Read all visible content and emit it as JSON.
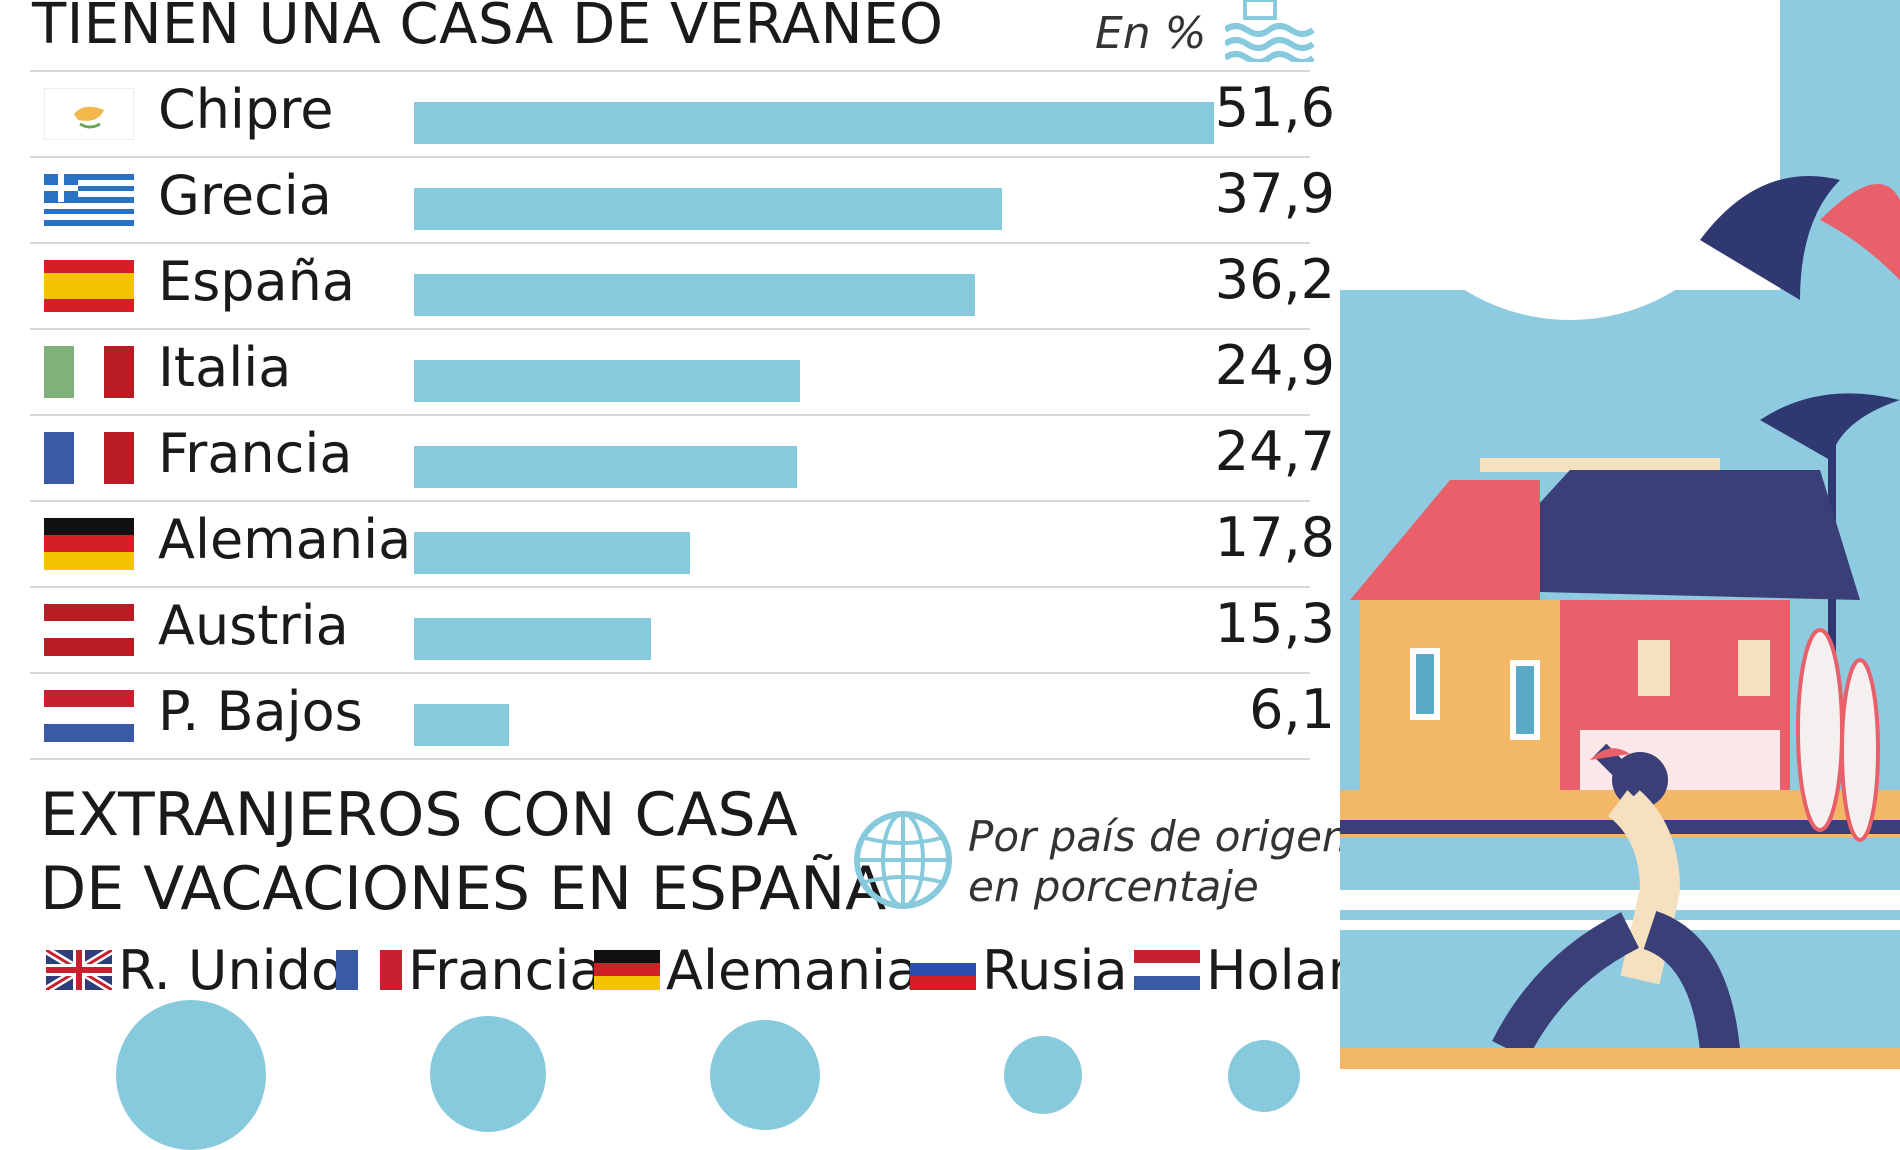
{
  "header": {
    "title": "TIENEN UNA CASA DE VERANEO",
    "unit": "En %"
  },
  "chart_data": [
    {
      "type": "bar",
      "title": "TIENEN UNA CASA DE VERANEO",
      "unit": "En %",
      "categories": [
        "Chipre",
        "Grecia",
        "España",
        "Italia",
        "Francia",
        "Alemania",
        "Austria",
        "P. Bajos"
      ],
      "values": [
        51.6,
        37.9,
        36.2,
        24.9,
        24.7,
        17.8,
        15.3,
        6.1
      ],
      "value_labels": [
        "51,6",
        "37,9",
        "36,2",
        "24,9",
        "24,7",
        "17,8",
        "15,3",
        "6,1"
      ],
      "bar_color": "#87c9dd",
      "orientation": "horizontal"
    },
    {
      "type": "bubble",
      "title": "EXTRANJEROS CON CASA DE VACACIONES EN ESPAÑA",
      "subtitle": "Por país de origen, en porcentaje",
      "categories": [
        "R. Unido",
        "Francia",
        "Alemania",
        "Rusia",
        "Holanda"
      ],
      "bubble_color": "#87c9dd"
    }
  ],
  "section2": {
    "title_line1": "EXTRANJEROS CON CASA",
    "title_line2": "DE VACACIONES EN ESPAÑA",
    "subtitle_line1": "Por país de origen,",
    "subtitle_line2": "en porcentaje",
    "legend": [
      "R. Unido",
      "Francia",
      "Alemania",
      "Rusia",
      "Holanda"
    ]
  },
  "icons": [
    "beach-umbrella-icon",
    "globe-icon",
    "flag-icons",
    "beach-house-illustration"
  ]
}
